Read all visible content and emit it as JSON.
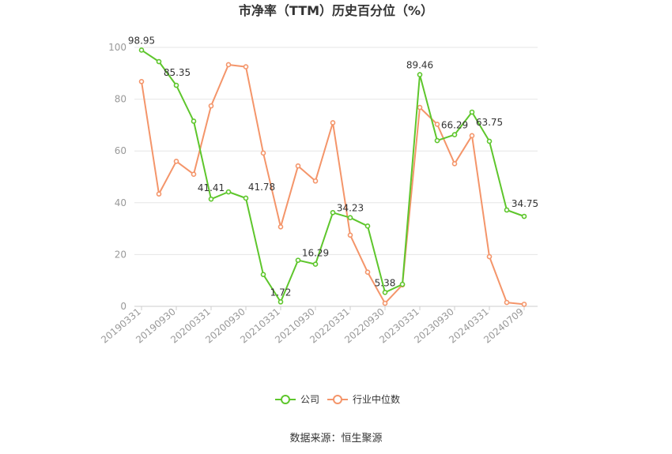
{
  "chart_data": {
    "type": "line",
    "title": "市净率（TTM）历史百分位（%）",
    "source": "数据来源：恒生聚源",
    "ylim": [
      0,
      100
    ],
    "yticks": [
      0,
      20,
      40,
      60,
      80,
      100
    ],
    "grid": true,
    "legend_position": "bottom-center",
    "x": [
      "20190331",
      "20190630",
      "20190930",
      "20191231",
      "20200331",
      "20200630",
      "20200930",
      "20201231",
      "20210331",
      "20210630",
      "20210930",
      "20211231",
      "20220331",
      "20220630",
      "20220930",
      "20221231",
      "20230331",
      "20230630",
      "20230930",
      "20231231",
      "20240331",
      "20240630",
      "20240709"
    ],
    "x_tick_labels": [
      "20190331",
      "20190930",
      "20200331",
      "20200930",
      "20210331",
      "20210930",
      "20220331",
      "20220930",
      "20230331",
      "20230930",
      "20240331",
      "20240709"
    ],
    "series": [
      {
        "name": "公司",
        "color": "#5ec62c",
        "values": [
          98.95,
          94.5,
          85.35,
          71.5,
          41.41,
          44.2,
          41.78,
          12.3,
          1.72,
          17.8,
          16.29,
          36.2,
          34.23,
          31.0,
          5.38,
          8.5,
          89.46,
          64.0,
          66.29,
          75.0,
          63.75,
          37.2,
          34.75
        ],
        "labels": {
          "0": "98.95",
          "2": "85.35",
          "4": "41.41",
          "6": "41.78",
          "8": "1.72",
          "10": "16.29",
          "12": "34.23",
          "14": "5.38",
          "16": "89.46",
          "18": "66.29",
          "20": "63.75",
          "22": "34.75"
        }
      },
      {
        "name": "行业中位数",
        "color": "#f4956a",
        "values": [
          86.8,
          43.4,
          56.0,
          51.0,
          77.4,
          93.3,
          92.5,
          59.2,
          30.7,
          54.2,
          48.4,
          70.9,
          27.5,
          13.2,
          1.2,
          8.3,
          76.8,
          70.3,
          55.1,
          65.9,
          19.2,
          1.5,
          0.8
        ]
      }
    ]
  }
}
